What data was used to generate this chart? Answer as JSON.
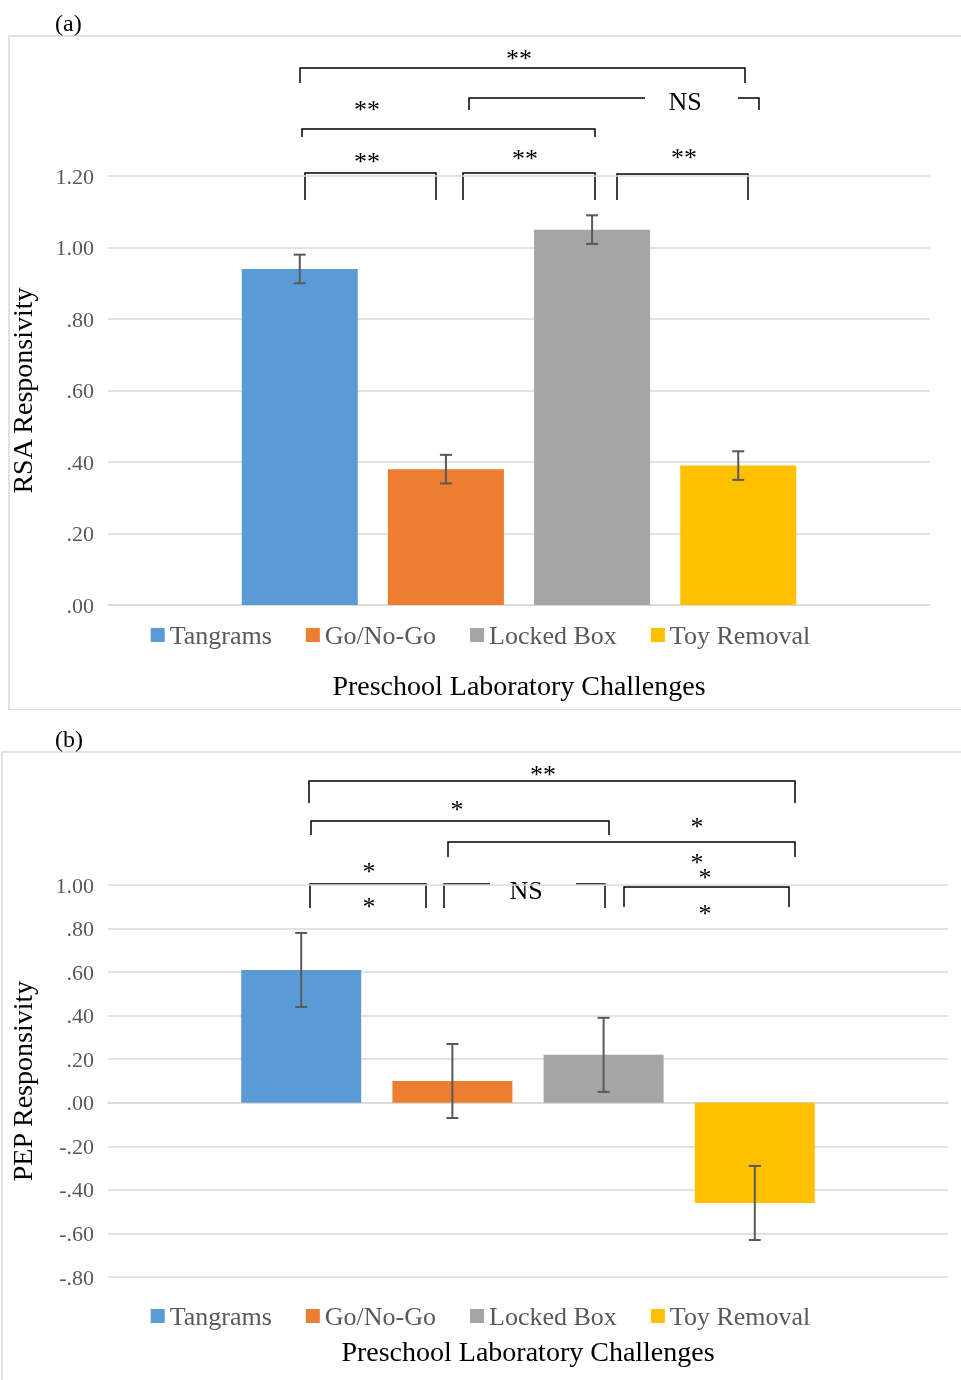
{
  "chart_data": [
    {
      "type": "bar",
      "title": "(a)",
      "xlabel": "Preschool Laboratory Challenges",
      "ylabel": "RSA Responsivity",
      "categories": [
        null
      ],
      "series": [
        {
          "name": "Tangrams",
          "color": "#5b9bd5",
          "values": [
            0.94
          ],
          "errors": [
            0.04
          ]
        },
        {
          "name": "Go/No-Go",
          "color": "#ed7d31",
          "values": [
            0.38
          ],
          "errors": [
            0.04
          ]
        },
        {
          "name": "Locked Box",
          "color": "#a5a5a5",
          "values": [
            1.05
          ],
          "errors": [
            0.04
          ]
        },
        {
          "name": "Toy Removal",
          "color": "#ffc000",
          "values": [
            0.39
          ],
          "errors": [
            0.04
          ]
        }
      ],
      "ylim": [
        0,
        1.2
      ],
      "yticks": [
        {
          "value": 0,
          "label": ".00"
        },
        {
          "value": 0.2,
          "label": ".20"
        },
        {
          "value": 0.4,
          "label": ".40"
        },
        {
          "value": 0.6,
          "label": ".60"
        },
        {
          "value": 0.8,
          "label": ".80"
        },
        {
          "value": 1,
          "label": "1.00"
        },
        {
          "value": 1.2,
          "label": "1.20"
        }
      ],
      "grid": "y",
      "legend": "bottom",
      "annotations": [
        "**",
        "**",
        "**",
        "**",
        "NS",
        "**"
      ]
    },
    {
      "type": "bar",
      "title": "(b)",
      "xlabel": "Preschool Laboratory Challenges",
      "ylabel": "PEP Responsivity",
      "categories": [
        null
      ],
      "series": [
        {
          "name": "Tangrams",
          "color": "#5b9bd5",
          "values": [
            0.61
          ],
          "errors": [
            0.17
          ]
        },
        {
          "name": "Go/No-Go",
          "color": "#ed7d31",
          "values": [
            0.1
          ],
          "errors": [
            0.17
          ]
        },
        {
          "name": "Locked Box",
          "color": "#a5a5a5",
          "values": [
            0.22
          ],
          "errors": [
            0.17
          ]
        },
        {
          "name": "Toy Removal",
          "color": "#ffc000",
          "values": [
            -0.46
          ],
          "errors": [
            0.17
          ]
        }
      ],
      "ylim": [
        -0.8,
        1
      ],
      "yticks": [
        {
          "value": -0.8,
          "label": "-.80"
        },
        {
          "value": -0.6,
          "label": "-.60"
        },
        {
          "value": -0.4,
          "label": "-.40"
        },
        {
          "value": -0.2,
          "label": "-.20"
        },
        {
          "value": 0,
          "label": ".00"
        },
        {
          "value": 0.2,
          "label": ".20"
        },
        {
          "value": 0.4,
          "label": ".40"
        },
        {
          "value": 0.6,
          "label": ".60"
        },
        {
          "value": 0.8,
          "label": ".80"
        },
        {
          "value": 1,
          "label": "1.00"
        }
      ],
      "grid": "y",
      "legend": "bottom",
      "annotations": [
        "**",
        "*",
        "*",
        "*",
        "*",
        "*",
        "*",
        "NS",
        "*"
      ]
    }
  ]
}
